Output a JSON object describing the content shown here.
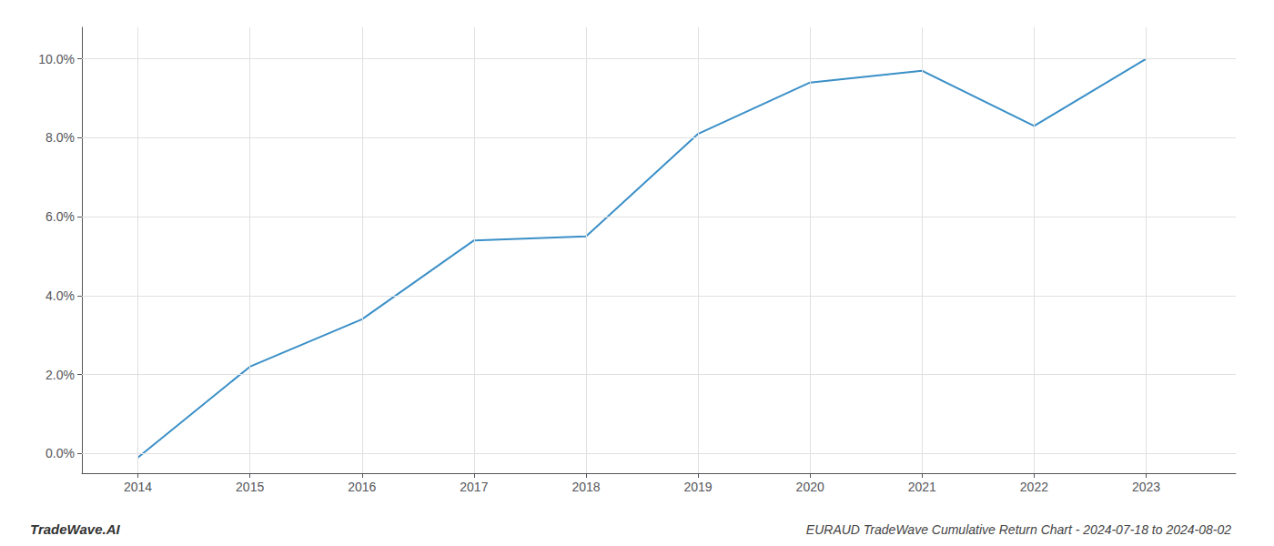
{
  "chart_data": {
    "type": "line",
    "title": "EURAUD TradeWave Cumulative Return Chart - 2024-07-18 to 2024-08-02",
    "annotations": [
      "TradeWave.AI"
    ],
    "x": [
      2014,
      2015,
      2016,
      2017,
      2018,
      2019,
      2020,
      2021,
      2022,
      2023
    ],
    "values": [
      -0.1,
      2.2,
      3.4,
      5.4,
      5.5,
      8.1,
      9.4,
      9.7,
      8.3,
      10.0
    ],
    "color": "#3a8fc7",
    "xlim": [
      2013.5,
      2023.8
    ],
    "ylim": [
      -0.5,
      10.8
    ],
    "xticks": [
      2014,
      2015,
      2016,
      2017,
      2018,
      2019,
      2020,
      2021,
      2022,
      2023
    ],
    "yticks": [
      {
        "value": 0.0,
        "label": "0.0%"
      },
      {
        "value": 2.0,
        "label": "2.0%"
      },
      {
        "value": 4.0,
        "label": "4.0%"
      },
      {
        "value": 6.0,
        "label": "6.0%"
      },
      {
        "value": 8.0,
        "label": "8.0%"
      },
      {
        "value": 10.0,
        "label": "10.0%"
      }
    ],
    "grid": true
  }
}
